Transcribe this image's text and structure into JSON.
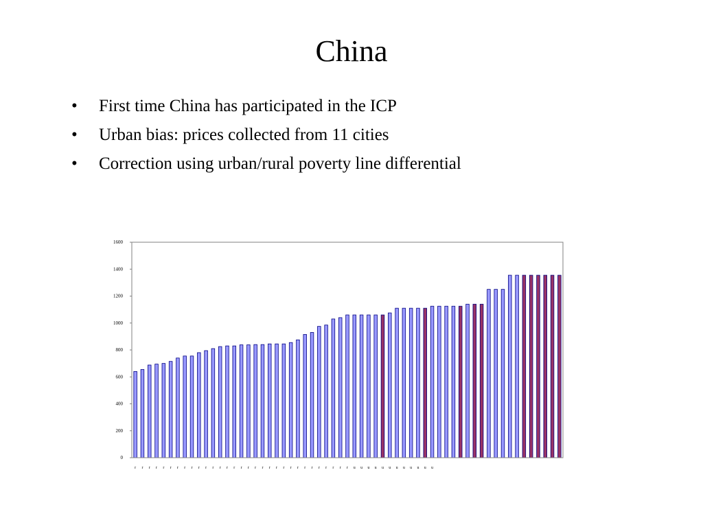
{
  "slide": {
    "title": "China",
    "bullets": [
      "First time China has participated in the ICP",
      "Urban bias: prices collected from 11 cities",
      "Correction using urban/rural poverty line differential"
    ],
    "bullet_glyph": "•"
  },
  "chart_data": {
    "type": "bar",
    "title": "",
    "xlabel": "",
    "ylabel": "",
    "ylim": [
      0,
      1600
    ],
    "yticks": [
      0,
      200,
      400,
      600,
      800,
      1000,
      1200,
      1400,
      1600
    ],
    "grid": false,
    "legend": "none",
    "colors": {
      "blue": "#9999ff",
      "red": "#993366",
      "outline": "#000080",
      "frame": "#808080"
    },
    "bars": [
      {
        "label": "r",
        "value": 640,
        "color": "blue"
      },
      {
        "label": "r",
        "value": 655,
        "color": "blue"
      },
      {
        "label": "r",
        "value": 688,
        "color": "blue"
      },
      {
        "label": "r",
        "value": 695,
        "color": "blue"
      },
      {
        "label": "r",
        "value": 700,
        "color": "blue"
      },
      {
        "label": "r",
        "value": 715,
        "color": "blue"
      },
      {
        "label": "r",
        "value": 740,
        "color": "blue"
      },
      {
        "label": "r",
        "value": 755,
        "color": "blue"
      },
      {
        "label": "r",
        "value": 755,
        "color": "blue"
      },
      {
        "label": "r",
        "value": 780,
        "color": "blue"
      },
      {
        "label": "r",
        "value": 795,
        "color": "blue"
      },
      {
        "label": "r",
        "value": 810,
        "color": "blue"
      },
      {
        "label": "r",
        "value": 825,
        "color": "blue"
      },
      {
        "label": "r",
        "value": 830,
        "color": "blue"
      },
      {
        "label": "r",
        "value": 830,
        "color": "blue"
      },
      {
        "label": "r",
        "value": 838,
        "color": "blue"
      },
      {
        "label": "r",
        "value": 838,
        "color": "blue"
      },
      {
        "label": "r",
        "value": 840,
        "color": "blue"
      },
      {
        "label": "r",
        "value": 840,
        "color": "blue"
      },
      {
        "label": "r",
        "value": 845,
        "color": "blue"
      },
      {
        "label": "r",
        "value": 845,
        "color": "blue"
      },
      {
        "label": "r",
        "value": 845,
        "color": "blue"
      },
      {
        "label": "r",
        "value": 855,
        "color": "blue"
      },
      {
        "label": "r",
        "value": 875,
        "color": "blue"
      },
      {
        "label": "r",
        "value": 915,
        "color": "blue"
      },
      {
        "label": "r",
        "value": 930,
        "color": "blue"
      },
      {
        "label": "r",
        "value": 975,
        "color": "blue"
      },
      {
        "label": "r",
        "value": 985,
        "color": "blue"
      },
      {
        "label": "r",
        "value": 1030,
        "color": "blue"
      },
      {
        "label": "r",
        "value": 1040,
        "color": "blue"
      },
      {
        "label": "r",
        "value": 1060,
        "color": "blue"
      },
      {
        "label": "u",
        "value": 1060,
        "color": "blue"
      },
      {
        "label": "u",
        "value": 1060,
        "color": "blue"
      },
      {
        "label": "u",
        "value": 1060,
        "color": "blue"
      },
      {
        "label": "u",
        "value": 1060,
        "color": "blue"
      },
      {
        "label": "u",
        "value": 1060,
        "color": "red"
      },
      {
        "label": "u",
        "value": 1075,
        "color": "blue"
      },
      {
        "label": "u",
        "value": 1110,
        "color": "blue"
      },
      {
        "label": "u",
        "value": 1110,
        "color": "blue"
      },
      {
        "label": "u",
        "value": 1110,
        "color": "blue"
      },
      {
        "label": "u",
        "value": 1110,
        "color": "blue"
      },
      {
        "label": "u",
        "value": 1110,
        "color": "red"
      },
      {
        "label": "u",
        "value": 1125,
        "color": "blue"
      },
      {
        "label": "",
        "value": 1125,
        "color": "blue"
      },
      {
        "label": "",
        "value": 1125,
        "color": "blue"
      },
      {
        "label": "",
        "value": 1125,
        "color": "blue"
      },
      {
        "label": "",
        "value": 1125,
        "color": "red"
      },
      {
        "label": "",
        "value": 1140,
        "color": "blue"
      },
      {
        "label": "",
        "value": 1140,
        "color": "red"
      },
      {
        "label": "",
        "value": 1140,
        "color": "red"
      },
      {
        "label": "",
        "value": 1250,
        "color": "blue"
      },
      {
        "label": "",
        "value": 1250,
        "color": "blue"
      },
      {
        "label": "",
        "value": 1250,
        "color": "blue"
      },
      {
        "label": "",
        "value": 1355,
        "color": "blue"
      },
      {
        "label": "",
        "value": 1355,
        "color": "blue"
      },
      {
        "label": "",
        "value": 1355,
        "color": "red"
      },
      {
        "label": "",
        "value": 1355,
        "color": "red"
      },
      {
        "label": "",
        "value": 1355,
        "color": "red"
      },
      {
        "label": "",
        "value": 1355,
        "color": "red"
      },
      {
        "label": "",
        "value": 1355,
        "color": "red"
      },
      {
        "label": "",
        "value": 1355,
        "color": "red"
      }
    ]
  }
}
